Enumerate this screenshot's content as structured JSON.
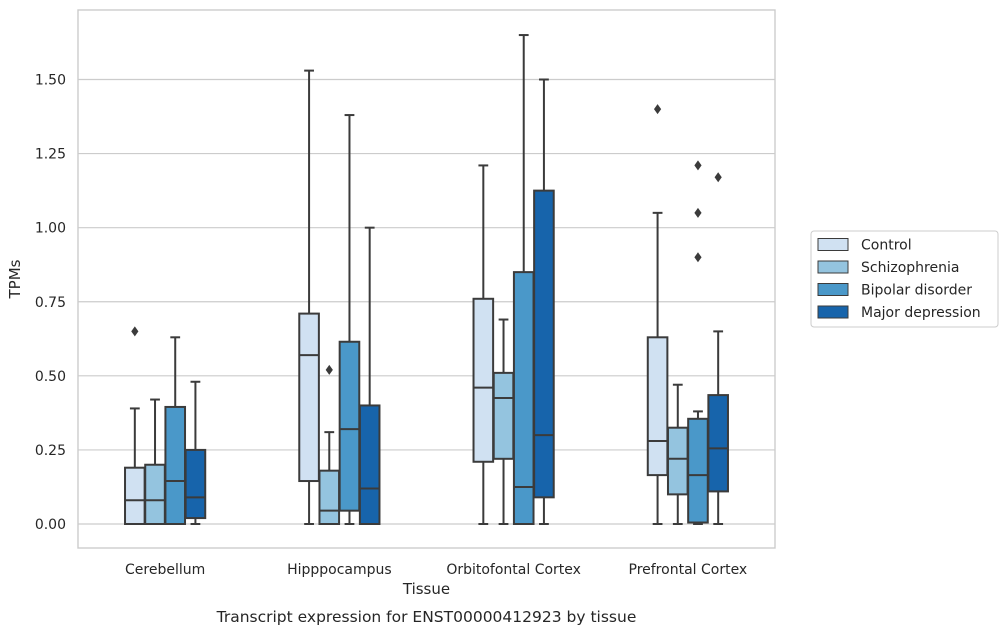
{
  "chart_data": {
    "type": "boxplot",
    "caption": "Transcript expression for ENST00000412923 by tissue",
    "xlabel": "Tissue",
    "ylabel": "TPMs",
    "ylim": [
      -0.08,
      1.74
    ],
    "yticks": [
      0.0,
      0.25,
      0.5,
      0.75,
      1.0,
      1.25,
      1.5
    ],
    "ytick_labels": [
      "0.00",
      "0.25",
      "0.50",
      "0.75",
      "1.00",
      "1.25",
      "1.50"
    ],
    "grid": "horizontal",
    "legend_position": "right",
    "categories": [
      "Cerebellum",
      "Hipppocampus",
      "Orbitofontal Cortex",
      "Prefrontal Cortex"
    ],
    "series": [
      {
        "name": "Control",
        "color": "#d0e1f2",
        "boxes": [
          {
            "low": 0.0,
            "q1": 0.0,
            "median": 0.08,
            "q3": 0.19,
            "high": 0.39,
            "outliers": [
              0.65
            ]
          },
          {
            "low": 0.0,
            "q1": 0.145,
            "median": 0.57,
            "q3": 0.71,
            "high": 1.53,
            "outliers": []
          },
          {
            "low": 0.0,
            "q1": 0.21,
            "median": 0.46,
            "q3": 0.76,
            "high": 1.21,
            "outliers": []
          },
          {
            "low": 0.0,
            "q1": 0.165,
            "median": 0.28,
            "q3": 0.63,
            "high": 1.05,
            "outliers": [
              1.4
            ]
          }
        ]
      },
      {
        "name": "Schizophrenia",
        "color": "#94c4df",
        "boxes": [
          {
            "low": 0.0,
            "q1": 0.0,
            "median": 0.08,
            "q3": 0.2,
            "high": 0.42,
            "outliers": []
          },
          {
            "low": 0.0,
            "q1": 0.0,
            "median": 0.045,
            "q3": 0.18,
            "high": 0.31,
            "outliers": [
              0.52
            ]
          },
          {
            "low": 0.0,
            "q1": 0.22,
            "median": 0.425,
            "q3": 0.51,
            "high": 0.69,
            "outliers": []
          },
          {
            "low": 0.0,
            "q1": 0.1,
            "median": 0.22,
            "q3": 0.325,
            "high": 0.47,
            "outliers": []
          }
        ]
      },
      {
        "name": "Bipolar disorder",
        "color": "#4a98c9",
        "boxes": [
          {
            "low": 0.0,
            "q1": 0.0,
            "median": 0.145,
            "q3": 0.395,
            "high": 0.63,
            "outliers": []
          },
          {
            "low": 0.0,
            "q1": 0.045,
            "median": 0.32,
            "q3": 0.615,
            "high": 1.38,
            "outliers": []
          },
          {
            "low": 0.0,
            "q1": 0.0,
            "median": 0.125,
            "q3": 0.85,
            "high": 1.65,
            "outliers": []
          },
          {
            "low": 0.0,
            "q1": 0.005,
            "median": 0.165,
            "q3": 0.355,
            "high": 0.38,
            "outliers": [
              0.9,
              1.05,
              1.21
            ]
          }
        ]
      },
      {
        "name": "Major depression",
        "color": "#1764ab",
        "boxes": [
          {
            "low": 0.0,
            "q1": 0.02,
            "median": 0.09,
            "q3": 0.25,
            "high": 0.48,
            "outliers": []
          },
          {
            "low": 0.0,
            "q1": 0.0,
            "median": 0.12,
            "q3": 0.4,
            "high": 1.0,
            "outliers": []
          },
          {
            "low": 0.0,
            "q1": 0.09,
            "median": 0.3,
            "q3": 1.125,
            "high": 1.5,
            "outliers": []
          },
          {
            "low": 0.0,
            "q1": 0.11,
            "median": 0.255,
            "q3": 0.435,
            "high": 0.65,
            "outliers": [
              1.17
            ]
          }
        ]
      }
    ]
  }
}
